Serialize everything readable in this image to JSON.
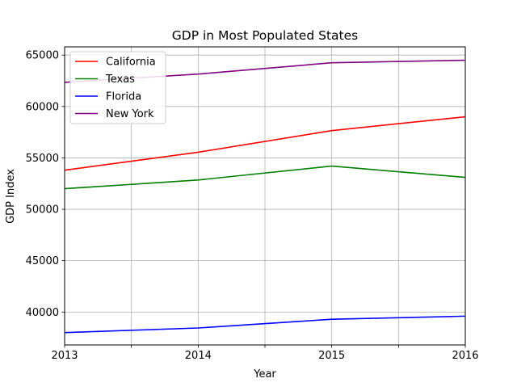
{
  "chart_data": {
    "type": "line",
    "title": "GDP in Most Populated States",
    "xlabel": "Year",
    "ylabel": "GDP Index",
    "x": [
      2013,
      2014,
      2015,
      2016
    ],
    "xlim": [
      2013,
      2016
    ],
    "ylim": [
      36800,
      65800
    ],
    "xticks": [
      2013,
      2013.5,
      2014,
      2014.5,
      2015,
      2015.5,
      2016
    ],
    "xtick_labels": [
      "2013",
      "",
      "2014",
      "",
      "2015",
      "",
      "2016"
    ],
    "yticks": [
      40000,
      45000,
      50000,
      55000,
      60000,
      65000
    ],
    "ytick_labels": [
      "40000",
      "45000",
      "50000",
      "55000",
      "60000",
      "65000"
    ],
    "grid": true,
    "legend_position": "top-left",
    "series": [
      {
        "name": "California",
        "color": "#ff0000",
        "values": [
          53800,
          55550,
          57650,
          59000
        ]
      },
      {
        "name": "Texas",
        "color": "#008000",
        "values": [
          52000,
          52850,
          54200,
          53100
        ]
      },
      {
        "name": "Florida",
        "color": "#0000ff",
        "values": [
          38000,
          38450,
          39300,
          39600
        ]
      },
      {
        "name": "New York",
        "color": "#800080",
        "values": [
          62350,
          63150,
          64250,
          64500
        ]
      }
    ]
  }
}
